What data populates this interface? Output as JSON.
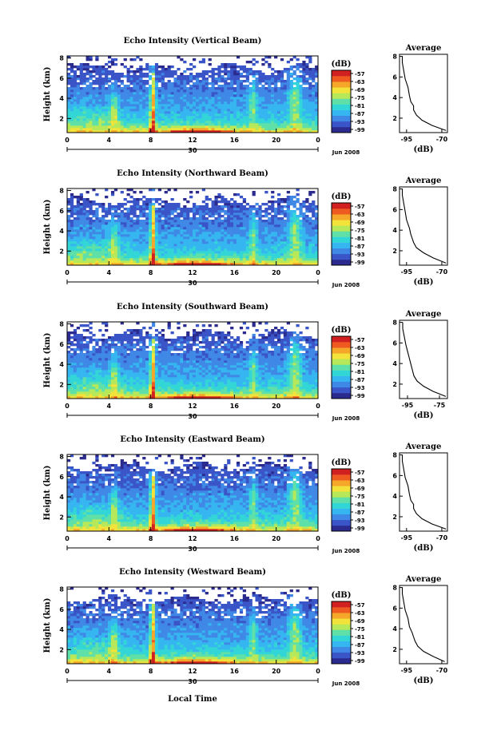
{
  "chart_data": {
    "type": "heatmap",
    "colorbar": {
      "unit_label": "(dB)",
      "ticks": [
        "-57",
        "-63",
        "-69",
        "-75",
        "-81",
        "-87",
        "-93",
        "-99"
      ],
      "colors": [
        "#2b2b8f",
        "#3a55c8",
        "#3f88e6",
        "#36b6f0",
        "#33d6d6",
        "#5ee0a8",
        "#b6e85a",
        "#f2e23a",
        "#f5a72a",
        "#ee5a1f",
        "#d02020"
      ]
    },
    "x_axis": {
      "ticks": [
        "0",
        "4",
        "8",
        "12",
        "16",
        "20",
        "0"
      ],
      "x": [
        0,
        4,
        8,
        12,
        16,
        20,
        24
      ],
      "range": [
        0,
        24
      ],
      "day_label": "30",
      "date_label": "Jun 2008",
      "xlabel": "Local Time"
    },
    "y_axis": {
      "ticks": [
        "2",
        "4",
        "6",
        "8"
      ],
      "values": [
        2,
        4,
        6,
        8
      ],
      "range": [
        0.6,
        8.2
      ],
      "ylabel": "Height (km)"
    },
    "panels": [
      {
        "title": "Echo Intensity (Vertical Beam)",
        "colorbar_ticks": [
          "-57",
          "-63",
          "-69",
          "-75",
          "-81",
          "-87",
          "-93",
          "-99"
        ],
        "average": {
          "title": "Average",
          "xlabel": "(dB)",
          "xticks": [
            "-95",
            "-70"
          ],
          "xvals": [
            -95,
            -70
          ],
          "xlim": [
            -100,
            -66
          ],
          "y": [
            0.8,
            1.3,
            1.8,
            2.3,
            2.8,
            3.2,
            3.6,
            4.2,
            5.0,
            5.8,
            6.6,
            7.4,
            8.0
          ],
          "x": [
            -67,
            -77,
            -84,
            -88,
            -90,
            -90,
            -92,
            -93,
            -94,
            -96,
            -97,
            -98,
            -98
          ]
        }
      },
      {
        "title": "Echo Intensity (Northward Beam)",
        "colorbar_ticks": [
          "-57",
          "-63",
          "-69",
          "-75",
          "-81",
          "-87",
          "-93",
          "-99"
        ],
        "average": {
          "title": "Average",
          "xlabel": "(dB)",
          "xticks": [
            "-95",
            "-70"
          ],
          "xvals": [
            -95,
            -70
          ],
          "xlim": [
            -100,
            -66
          ],
          "y": [
            0.8,
            1.3,
            1.8,
            2.3,
            2.8,
            3.2,
            3.6,
            4.2,
            5.0,
            5.8,
            6.6,
            7.4,
            8.0
          ],
          "x": [
            -67,
            -76,
            -83,
            -88,
            -90,
            -91,
            -92,
            -93,
            -95,
            -96,
            -97,
            -98,
            -98
          ]
        }
      },
      {
        "title": "Echo Intensity (Southward Beam)",
        "colorbar_ticks": [
          "-57",
          "-63",
          "-69",
          "-75",
          "-81",
          "-87",
          "-93",
          "-99"
        ],
        "average": {
          "title": "Average",
          "xlabel": "(dB)",
          "xticks": [
            "-95",
            "-75"
          ],
          "xvals": [
            -95,
            -75
          ],
          "xlim": [
            -100,
            -70
          ],
          "y": [
            0.8,
            1.3,
            1.8,
            2.3,
            2.8,
            3.4,
            4.0,
            4.6,
            5.2,
            5.8,
            6.6,
            7.4,
            8.0
          ],
          "x": [
            -71,
            -79,
            -85,
            -89,
            -91,
            -92,
            -93,
            -94,
            -95,
            -96,
            -97,
            -98,
            -98
          ]
        }
      },
      {
        "title": "Echo Intensity (Eastward Beam)",
        "colorbar_ticks": [
          "-57",
          "-63",
          "-69",
          "-75",
          "-81",
          "-87",
          "-93",
          "-99"
        ],
        "average": {
          "title": "Average",
          "xlabel": "(dB)",
          "xticks": [
            "-95",
            "-70"
          ],
          "xvals": [
            -95,
            -70
          ],
          "xlim": [
            -100,
            -66
          ],
          "y": [
            0.8,
            1.3,
            1.8,
            2.3,
            2.8,
            3.2,
            3.6,
            4.2,
            5.0,
            5.8,
            6.6,
            7.4,
            8.0
          ],
          "x": [
            -67,
            -77,
            -84,
            -88,
            -90,
            -90,
            -92,
            -93,
            -94,
            -96,
            -97,
            -98,
            -98
          ]
        }
      },
      {
        "title": "Echo Intensity (Westward Beam)",
        "colorbar_ticks": [
          "-57",
          "-63",
          "-69",
          "-75",
          "-81",
          "-87",
          "-93",
          "-99"
        ],
        "average": {
          "title": "Average",
          "xlabel": "(dB)",
          "xticks": [
            "-95",
            "-70"
          ],
          "xvals": [
            -95,
            -70
          ],
          "xlim": [
            -100,
            -66
          ],
          "y": [
            0.8,
            1.3,
            1.8,
            2.3,
            2.8,
            3.2,
            3.6,
            4.2,
            5.0,
            5.8,
            6.6,
            7.4,
            8.0
          ],
          "x": [
            -68,
            -76,
            -83,
            -87,
            -89,
            -90,
            -91,
            -93,
            -94,
            -96,
            -97,
            -98,
            -98
          ]
        }
      }
    ]
  }
}
